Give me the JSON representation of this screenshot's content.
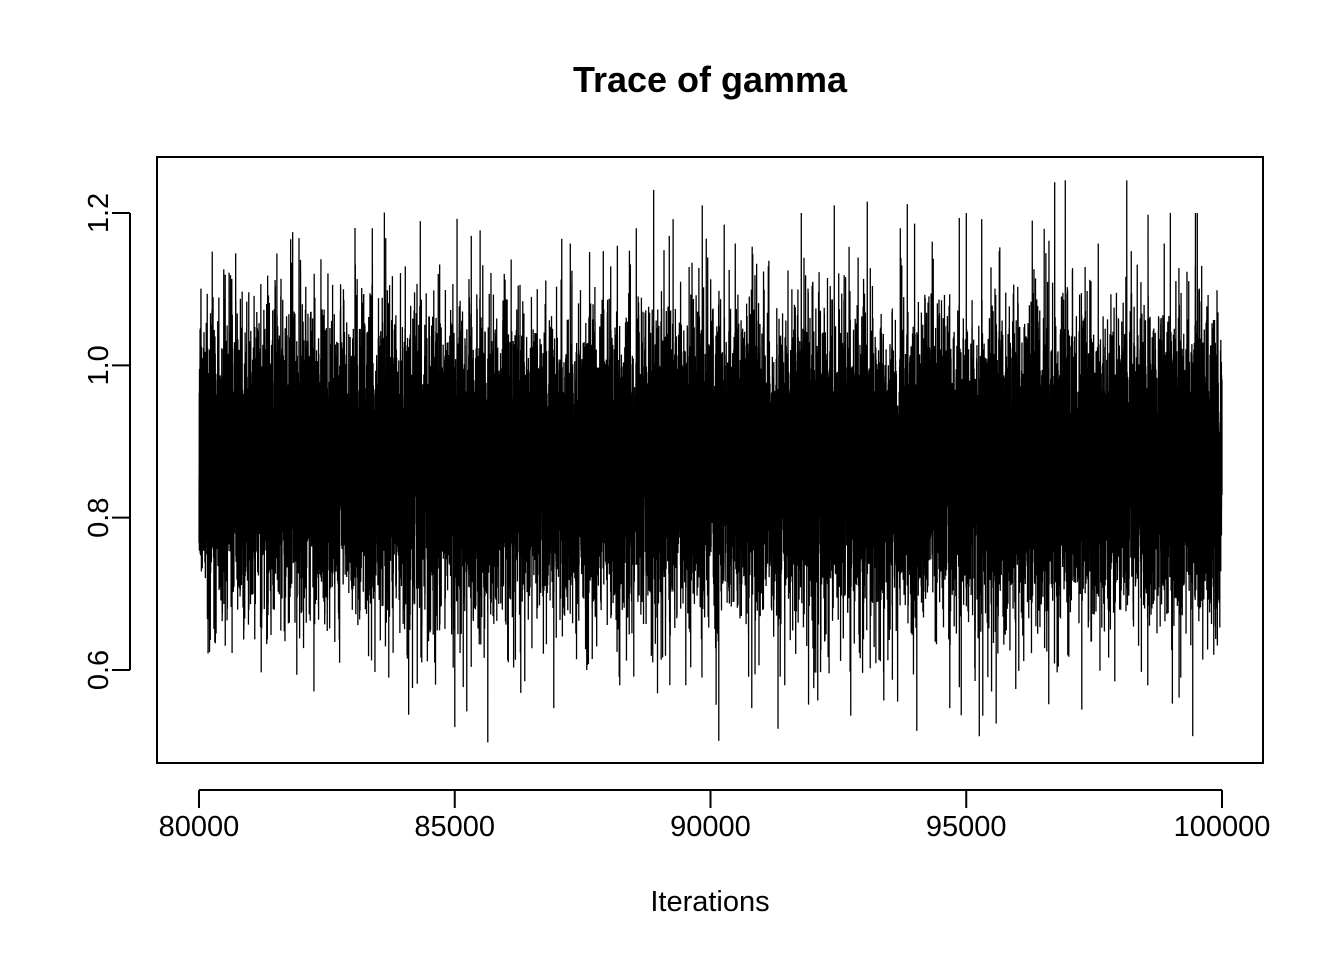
{
  "chart_data": {
    "type": "line",
    "title": "Trace of gamma",
    "xlabel": "Iterations",
    "ylabel": "",
    "xlim": [
      80000,
      100000
    ],
    "ylim": [
      0.5,
      1.25
    ],
    "x_ticks": [
      80000,
      85000,
      90000,
      95000,
      100000
    ],
    "x_tick_labels": [
      "80000",
      "85000",
      "90000",
      "95000",
      "100000"
    ],
    "y_ticks": [
      0.6,
      0.8,
      1.0,
      1.2
    ],
    "y_tick_labels": [
      "0.6",
      "0.8",
      "1.0",
      "1.2"
    ],
    "grid": false,
    "legend": "none",
    "line_color": "#000000",
    "series": [
      {
        "x_start": 80001,
        "x_end": 100000,
        "x_step": 1,
        "n": 20000,
        "mean": 0.87,
        "sd": 0.095,
        "min": 0.505,
        "max": 1.243,
        "values_sample": [
          0.88,
          1.126,
          0.704,
          1.07,
          0.68,
          0.95,
          0.662,
          1.02,
          0.64,
          0.97,
          1.18,
          0.59,
          1.13,
          0.61,
          1.12,
          0.525,
          1.17,
          0.505,
          1.12,
          0.57,
          1.1,
          0.55,
          1.16,
          0.6,
          1.15,
          0.58,
          1.18,
          0.61,
          1.17,
          0.58,
          1.21,
          0.507,
          1.16,
          0.55,
          1.13,
          0.58,
          1.2,
          0.56,
          1.21,
          0.54,
          1.215,
          0.56,
          1.18,
          0.52,
          1.14,
          0.55,
          1.2,
          0.54,
          1.15,
          0.575,
          1.19,
          0.555,
          1.243,
          0.548,
          1.16,
          0.585,
          1.15,
          0.58,
          1.16,
          0.59,
          1.2,
          0.62
        ]
      }
    ]
  }
}
